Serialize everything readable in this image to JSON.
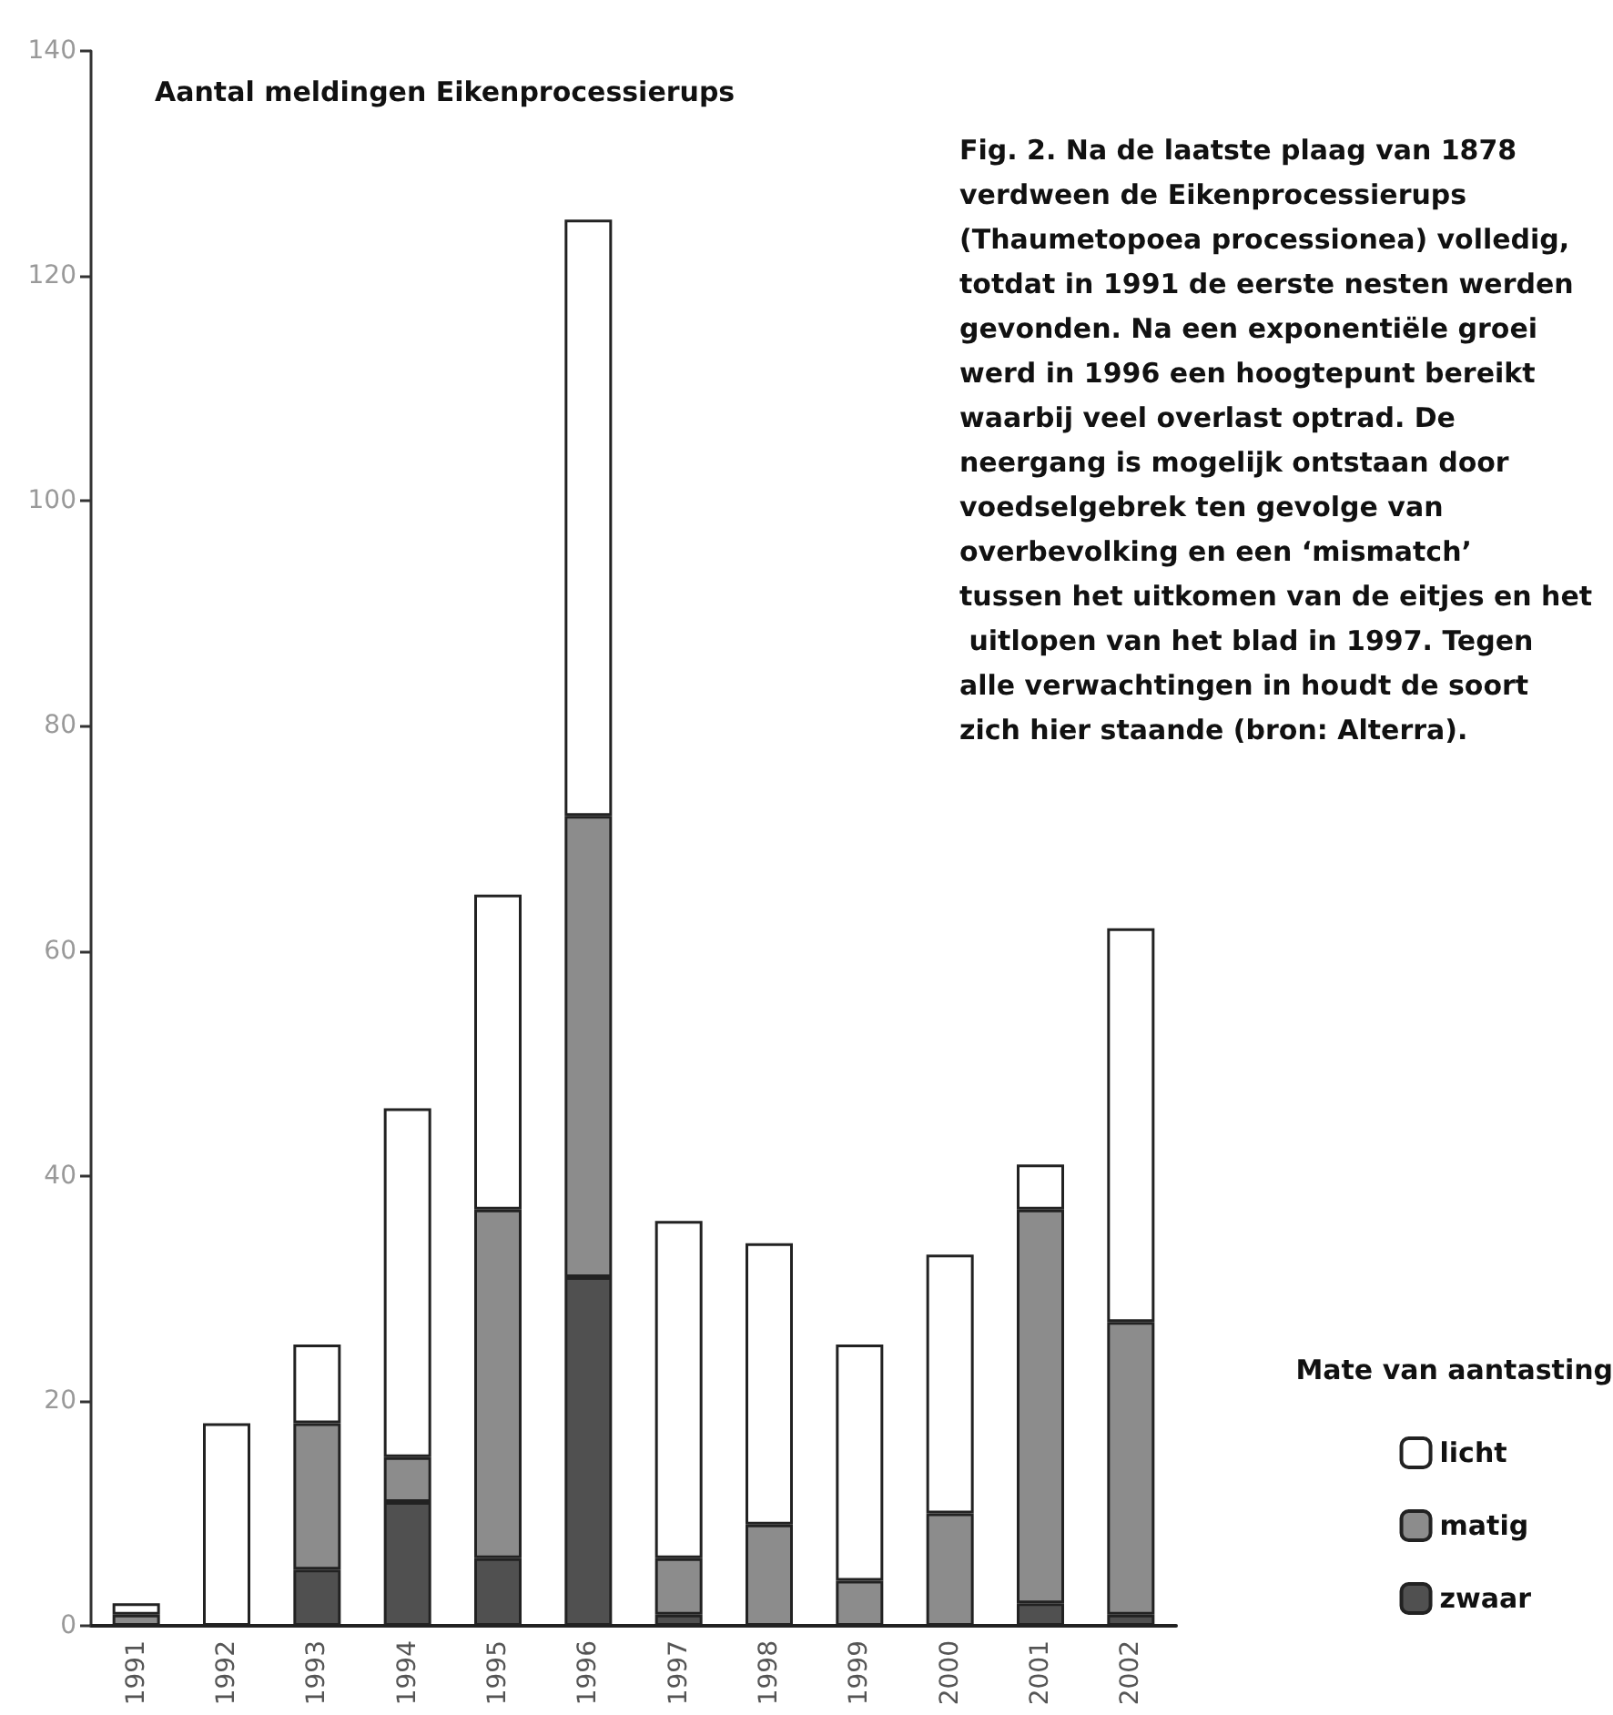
{
  "chart_data": {
    "type": "bar",
    "title": "Aantal meldingen Eikenprocessierups",
    "categories": [
      "1991",
      "1992",
      "1993",
      "1994",
      "1995",
      "1996",
      "1997",
      "1998",
      "1999",
      "2000",
      "2001",
      "2002"
    ],
    "stacked": true,
    "series": [
      {
        "name": "zwaar",
        "color": "#505050",
        "values": [
          0,
          0,
          5,
          11,
          6,
          31,
          1,
          0,
          0,
          0,
          2,
          1
        ]
      },
      {
        "name": "matig",
        "color": "#8c8c8c",
        "values": [
          1,
          0,
          13,
          4,
          31,
          41,
          5,
          9,
          4,
          10,
          35,
          26
        ]
      },
      {
        "name": "licht",
        "color": "#ffffff",
        "values": [
          1,
          18,
          7,
          31,
          28,
          53,
          30,
          25,
          21,
          23,
          4,
          35
        ]
      }
    ],
    "ylim": [
      0,
      140
    ],
    "yticks": [
      0,
      20,
      40,
      60,
      80,
      100,
      120,
      140
    ],
    "grid": false,
    "legend": "bottom right",
    "legend_title": "Mate van aantasting",
    "annotations": [
      "Fig. 2. Na de laatste plaag van 1878 verdween de Eikenprocessierups (Thaumetopoea processionea) volledig, totdat in 1991 de eerste nesten werden gevonden. Na een exponentiële groei werd in 1996 een hoogtepunt bereikt waarbij veel overlast optrad. De neergang is mogelijk ontstaan door voedselgebrek ten gevolge van overbevolking en een ‘mismatch’ tussen het uitkomen van de eitjes en het uitlopen van het blad in 1997. Tegen alle verwachtingen in houdt de soort zich hier staande (bron: Alterra)."
    ]
  }
}
